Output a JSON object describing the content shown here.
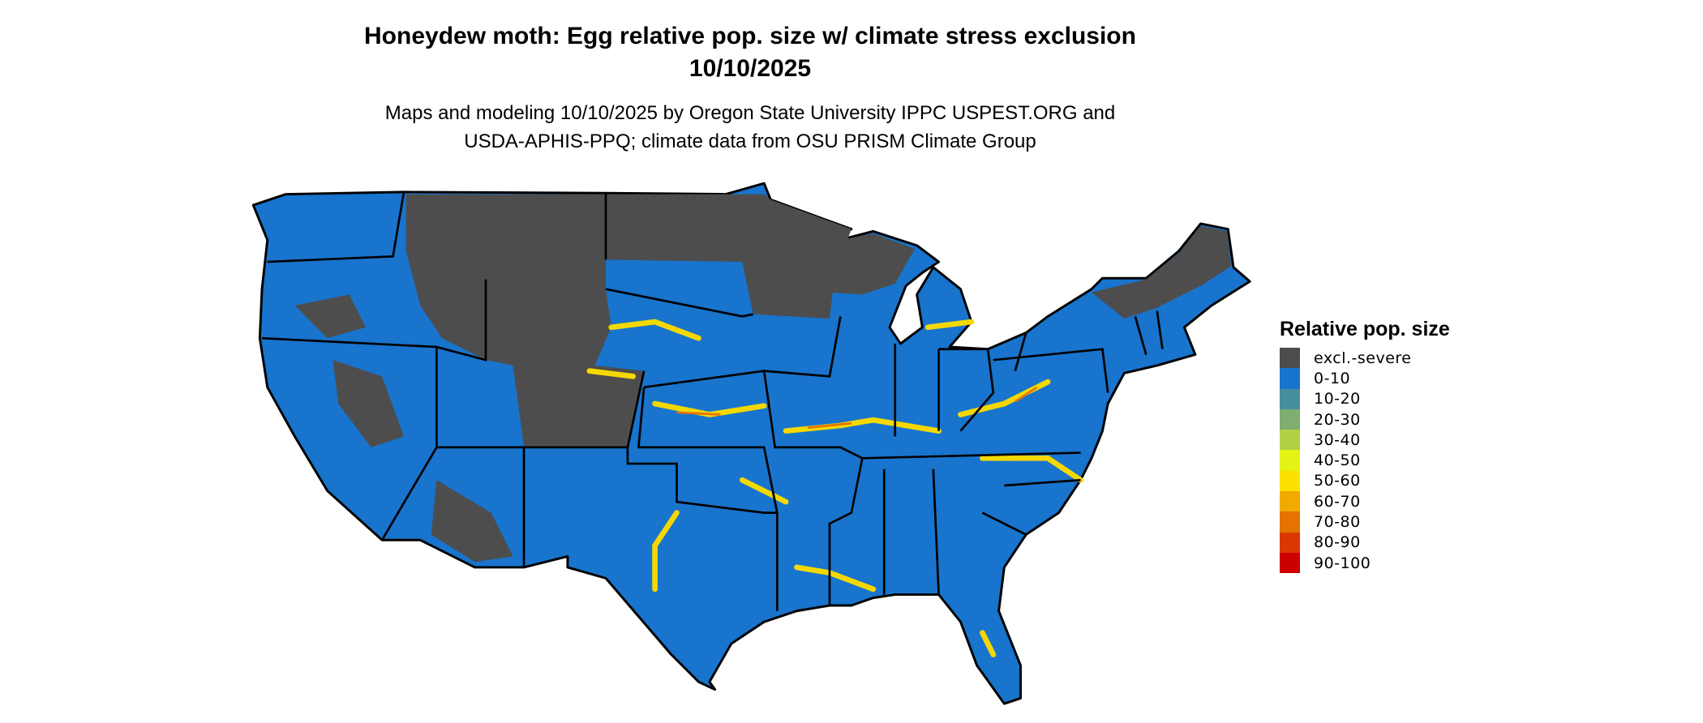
{
  "title": {
    "line1": "Honeydew moth: Egg relative pop. size w/ climate stress exclusion",
    "line2": "10/10/2025"
  },
  "subtitle": {
    "line1": "Maps and modeling 10/10/2025 by Oregon State University IPPC USPEST.ORG and",
    "line2": "USDA-APHIS-PPQ; climate data from OSU PRISM Climate Group"
  },
  "map": {
    "region": "Contiguous United States",
    "colors": {
      "excluded": "#4d4d4d",
      "low": "#1874cd",
      "mid": "#f5d800",
      "high": "#e07000",
      "border": "#000000"
    }
  },
  "legend": {
    "title": "Relative pop. size",
    "items": [
      {
        "label": "excl.-severe",
        "color": "#4d4d4d"
      },
      {
        "label": "0-10",
        "color": "#1874cd"
      },
      {
        "label": "10-20",
        "color": "#478e9c"
      },
      {
        "label": "20-30",
        "color": "#7fae70"
      },
      {
        "label": "30-40",
        "color": "#b2d045"
      },
      {
        "label": "40-50",
        "color": "#e4f217"
      },
      {
        "label": "50-60",
        "color": "#fae100"
      },
      {
        "label": "60-70",
        "color": "#f0aa00"
      },
      {
        "label": "70-80",
        "color": "#e47300"
      },
      {
        "label": "80-90",
        "color": "#da3800"
      },
      {
        "label": "90-100",
        "color": "#cc0000"
      }
    ]
  }
}
